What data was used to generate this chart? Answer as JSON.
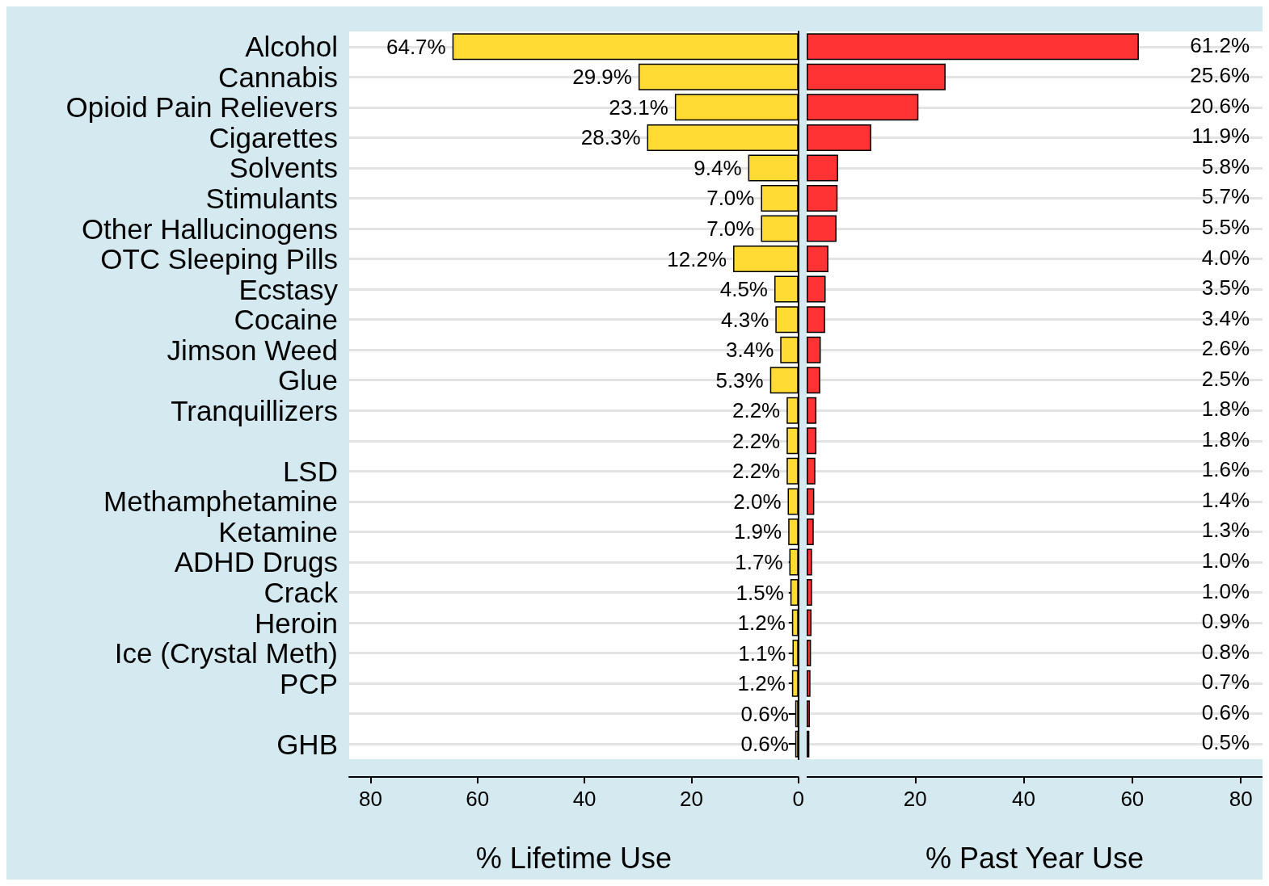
{
  "chart_data": [
    {
      "type": "bar",
      "orientation": "horizontal",
      "xlabel": "% Lifetime Use",
      "categories": [
        "Alcohol",
        "Cannabis",
        "Opioid Pain Relievers",
        "Cigarettes",
        "Solvents",
        "Stimulants",
        "Other Hallucinogens",
        "OTC Sleeping Pills",
        "Ecstasy",
        "Cocaine",
        "Jimson Weed",
        "Glue",
        "Tranquillizers",
        null,
        "LSD",
        "Methamphetamine",
        "Ketamine",
        "ADHD Drugs",
        "Crack",
        "Heroin",
        "Ice (Crystal Meth)",
        "PCP",
        null,
        "GHB"
      ],
      "series": [
        {
          "color": "#ffdb33",
          "values": [
            64.7,
            29.9,
            23.1,
            28.3,
            9.4,
            7.0,
            7.0,
            12.2,
            4.5,
            4.3,
            3.4,
            5.3,
            2.2,
            2.2,
            2.2,
            2.0,
            1.9,
            1.7,
            1.5,
            1.2,
            1.1,
            1.2,
            0.6,
            0.6
          ],
          "value_labels": [
            "64.7%",
            "29.9%",
            "23.1%",
            "28.3%",
            "9.4%",
            "7.0%",
            "7.0%",
            "12.2%",
            "4.5%",
            "4.3%",
            "3.4%",
            "5.3%",
            "2.2%",
            "2.2%",
            "2.2%",
            "2.0%",
            "1.9%",
            "1.7%",
            "1.5%",
            "1.2%",
            "1.1%",
            "1.2%",
            "0.6%",
            "0.6%"
          ]
        }
      ],
      "xlim": [
        84,
        0
      ],
      "xticks": [
        80,
        60,
        40,
        20,
        0
      ],
      "grid": "y"
    },
    {
      "type": "bar",
      "orientation": "horizontal",
      "xlabel": "% Past Year Use",
      "tick_labels": "x",
      "categories": [
        null,
        null,
        null,
        null,
        null,
        null,
        null,
        null,
        null,
        null,
        null,
        null,
        null,
        null,
        null,
        null,
        null,
        null,
        null,
        null,
        null,
        null,
        null,
        null
      ],
      "series": [
        {
          "color": "#ff3333",
          "values": [
            61.2,
            25.6,
            20.6,
            11.9,
            5.8,
            5.7,
            5.5,
            4.0,
            3.5,
            3.4,
            2.6,
            2.5,
            1.8,
            1.8,
            1.6,
            1.4,
            1.3,
            1.0,
            1.0,
            0.9,
            0.8,
            0.7,
            0.6,
            0.5
          ],
          "value_labels": [
            "61.2%",
            "25.6%",
            "20.6%",
            "11.9%",
            "5.8%",
            "5.7%",
            "5.5%",
            "4.0%",
            "3.5%",
            "3.4%",
            "2.6%",
            "2.5%",
            "1.8%",
            "1.8%",
            "1.6%",
            "1.4%",
            "1.3%",
            "1.0%",
            "1.0%",
            "0.9%",
            "0.8%",
            "0.7%",
            "0.6%",
            "0.5%"
          ]
        }
      ],
      "xlim": [
        0,
        84
      ],
      "xticks": [
        20,
        40,
        60,
        80
      ],
      "grid": "y"
    }
  ]
}
